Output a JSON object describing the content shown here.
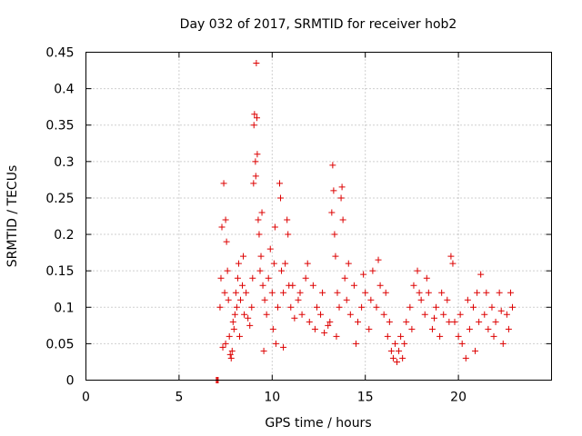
{
  "chart_data": {
    "type": "scatter",
    "title": "Day 032 of 2017, SRMTID for receiver hob2",
    "xlabel": "GPS time / hours",
    "ylabel": "SRMTID / TECUs",
    "xlim": [
      0,
      25
    ],
    "ylim": [
      0,
      0.45
    ],
    "xticks": [
      0,
      5,
      10,
      15,
      20
    ],
    "yticks": [
      0,
      0.05,
      0.1,
      0.15,
      0.2,
      0.25,
      0.3,
      0.35,
      0.4,
      0.45
    ],
    "xtick_labels": [
      "0",
      "5",
      "10",
      "15",
      "20"
    ],
    "ytick_labels": [
      "0",
      "0.05",
      "0.1",
      "0.15",
      "0.2",
      "0.25",
      "0.3",
      "0.35",
      "0.4",
      "0.45"
    ],
    "grid": true,
    "marker": "+",
    "color": "#dd0000",
    "series": [
      {
        "name": "SRMTID",
        "points": [
          [
            7.0,
            0.0
          ],
          [
            7.05,
            0.0
          ],
          [
            7.1,
            0.0
          ],
          [
            7.2,
            0.1
          ],
          [
            7.25,
            0.14
          ],
          [
            7.3,
            0.21
          ],
          [
            7.35,
            0.045
          ],
          [
            7.4,
            0.27
          ],
          [
            7.45,
            0.12
          ],
          [
            7.5,
            0.22
          ],
          [
            7.55,
            0.19
          ],
          [
            7.6,
            0.15
          ],
          [
            7.65,
            0.11
          ],
          [
            7.7,
            0.06
          ],
          [
            7.75,
            0.035
          ],
          [
            7.8,
            0.03
          ],
          [
            7.85,
            0.04
          ],
          [
            7.9,
            0.08
          ],
          [
            7.95,
            0.07
          ],
          [
            8.0,
            0.09
          ],
          [
            8.05,
            0.12
          ],
          [
            8.1,
            0.1
          ],
          [
            8.15,
            0.14
          ],
          [
            8.2,
            0.16
          ],
          [
            8.3,
            0.11
          ],
          [
            8.4,
            0.13
          ],
          [
            8.5,
            0.09
          ],
          [
            8.6,
            0.12
          ],
          [
            8.7,
            0.085
          ],
          [
            8.8,
            0.075
          ],
          [
            8.9,
            0.1
          ],
          [
            8.95,
            0.14
          ],
          [
            9.0,
            0.27
          ],
          [
            9.02,
            0.35
          ],
          [
            9.05,
            0.365
          ],
          [
            9.1,
            0.3
          ],
          [
            9.12,
            0.28
          ],
          [
            9.15,
            0.435
          ],
          [
            9.18,
            0.36
          ],
          [
            9.2,
            0.31
          ],
          [
            9.25,
            0.22
          ],
          [
            9.3,
            0.2
          ],
          [
            9.35,
            0.15
          ],
          [
            9.4,
            0.17
          ],
          [
            9.45,
            0.23
          ],
          [
            9.5,
            0.13
          ],
          [
            9.6,
            0.11
          ],
          [
            9.7,
            0.09
          ],
          [
            9.8,
            0.14
          ],
          [
            9.9,
            0.18
          ],
          [
            10.0,
            0.12
          ],
          [
            10.1,
            0.16
          ],
          [
            10.15,
            0.21
          ],
          [
            10.2,
            0.05
          ],
          [
            10.3,
            0.1
          ],
          [
            10.4,
            0.27
          ],
          [
            10.45,
            0.25
          ],
          [
            10.5,
            0.15
          ],
          [
            10.6,
            0.12
          ],
          [
            10.7,
            0.16
          ],
          [
            10.8,
            0.22
          ],
          [
            10.85,
            0.2
          ],
          [
            10.9,
            0.13
          ],
          [
            11.0,
            0.1
          ],
          [
            11.2,
            0.085
          ],
          [
            11.4,
            0.11
          ],
          [
            11.6,
            0.09
          ],
          [
            11.8,
            0.14
          ],
          [
            12.0,
            0.08
          ],
          [
            12.2,
            0.13
          ],
          [
            12.4,
            0.1
          ],
          [
            12.6,
            0.09
          ],
          [
            12.8,
            0.065
          ],
          [
            13.0,
            0.075
          ],
          [
            13.1,
            0.08
          ],
          [
            13.2,
            0.23
          ],
          [
            13.25,
            0.295
          ],
          [
            13.3,
            0.26
          ],
          [
            13.35,
            0.2
          ],
          [
            13.4,
            0.17
          ],
          [
            13.5,
            0.12
          ],
          [
            13.6,
            0.1
          ],
          [
            13.7,
            0.25
          ],
          [
            13.75,
            0.265
          ],
          [
            13.8,
            0.22
          ],
          [
            13.9,
            0.14
          ],
          [
            14.0,
            0.11
          ],
          [
            14.2,
            0.09
          ],
          [
            14.4,
            0.13
          ],
          [
            14.6,
            0.08
          ],
          [
            14.8,
            0.1
          ],
          [
            15.0,
            0.12
          ],
          [
            15.2,
            0.07
          ],
          [
            15.4,
            0.15
          ],
          [
            15.6,
            0.1
          ],
          [
            15.8,
            0.13
          ],
          [
            16.0,
            0.09
          ],
          [
            16.2,
            0.06
          ],
          [
            16.4,
            0.04
          ],
          [
            16.5,
            0.03
          ],
          [
            16.6,
            0.05
          ],
          [
            16.7,
            0.025
          ],
          [
            16.8,
            0.04
          ],
          [
            16.9,
            0.06
          ],
          [
            17.0,
            0.03
          ],
          [
            17.1,
            0.05
          ],
          [
            17.2,
            0.08
          ],
          [
            17.4,
            0.1
          ],
          [
            17.6,
            0.13
          ],
          [
            17.8,
            0.15
          ],
          [
            18.0,
            0.11
          ],
          [
            18.2,
            0.09
          ],
          [
            18.4,
            0.12
          ],
          [
            18.6,
            0.07
          ],
          [
            18.8,
            0.1
          ],
          [
            19.0,
            0.06
          ],
          [
            19.2,
            0.09
          ],
          [
            19.4,
            0.11
          ],
          [
            19.6,
            0.17
          ],
          [
            19.7,
            0.16
          ],
          [
            19.8,
            0.08
          ],
          [
            20.0,
            0.06
          ],
          [
            20.2,
            0.05
          ],
          [
            20.4,
            0.03
          ],
          [
            20.6,
            0.07
          ],
          [
            20.8,
            0.1
          ],
          [
            21.0,
            0.12
          ],
          [
            21.2,
            0.145
          ],
          [
            21.4,
            0.09
          ],
          [
            21.6,
            0.07
          ],
          [
            21.8,
            0.1
          ],
          [
            22.0,
            0.08
          ],
          [
            22.2,
            0.12
          ],
          [
            22.4,
            0.05
          ],
          [
            22.6,
            0.09
          ],
          [
            22.8,
            0.12
          ],
          [
            22.9,
            0.1
          ],
          [
            7.5,
            0.05
          ],
          [
            8.25,
            0.06
          ],
          [
            8.45,
            0.17
          ],
          [
            9.55,
            0.04
          ],
          [
            10.05,
            0.07
          ],
          [
            10.6,
            0.045
          ],
          [
            11.1,
            0.13
          ],
          [
            11.5,
            0.12
          ],
          [
            11.9,
            0.16
          ],
          [
            12.3,
            0.07
          ],
          [
            12.7,
            0.12
          ],
          [
            13.45,
            0.06
          ],
          [
            14.1,
            0.16
          ],
          [
            14.5,
            0.05
          ],
          [
            14.9,
            0.145
          ],
          [
            15.3,
            0.11
          ],
          [
            15.7,
            0.165
          ],
          [
            16.1,
            0.12
          ],
          [
            16.3,
            0.08
          ],
          [
            17.5,
            0.07
          ],
          [
            17.9,
            0.12
          ],
          [
            18.3,
            0.14
          ],
          [
            18.7,
            0.085
          ],
          [
            19.1,
            0.12
          ],
          [
            19.5,
            0.08
          ],
          [
            20.1,
            0.09
          ],
          [
            20.5,
            0.11
          ],
          [
            20.9,
            0.04
          ],
          [
            21.1,
            0.08
          ],
          [
            21.5,
            0.12
          ],
          [
            21.9,
            0.06
          ],
          [
            22.3,
            0.095
          ],
          [
            22.7,
            0.07
          ]
        ]
      }
    ]
  }
}
